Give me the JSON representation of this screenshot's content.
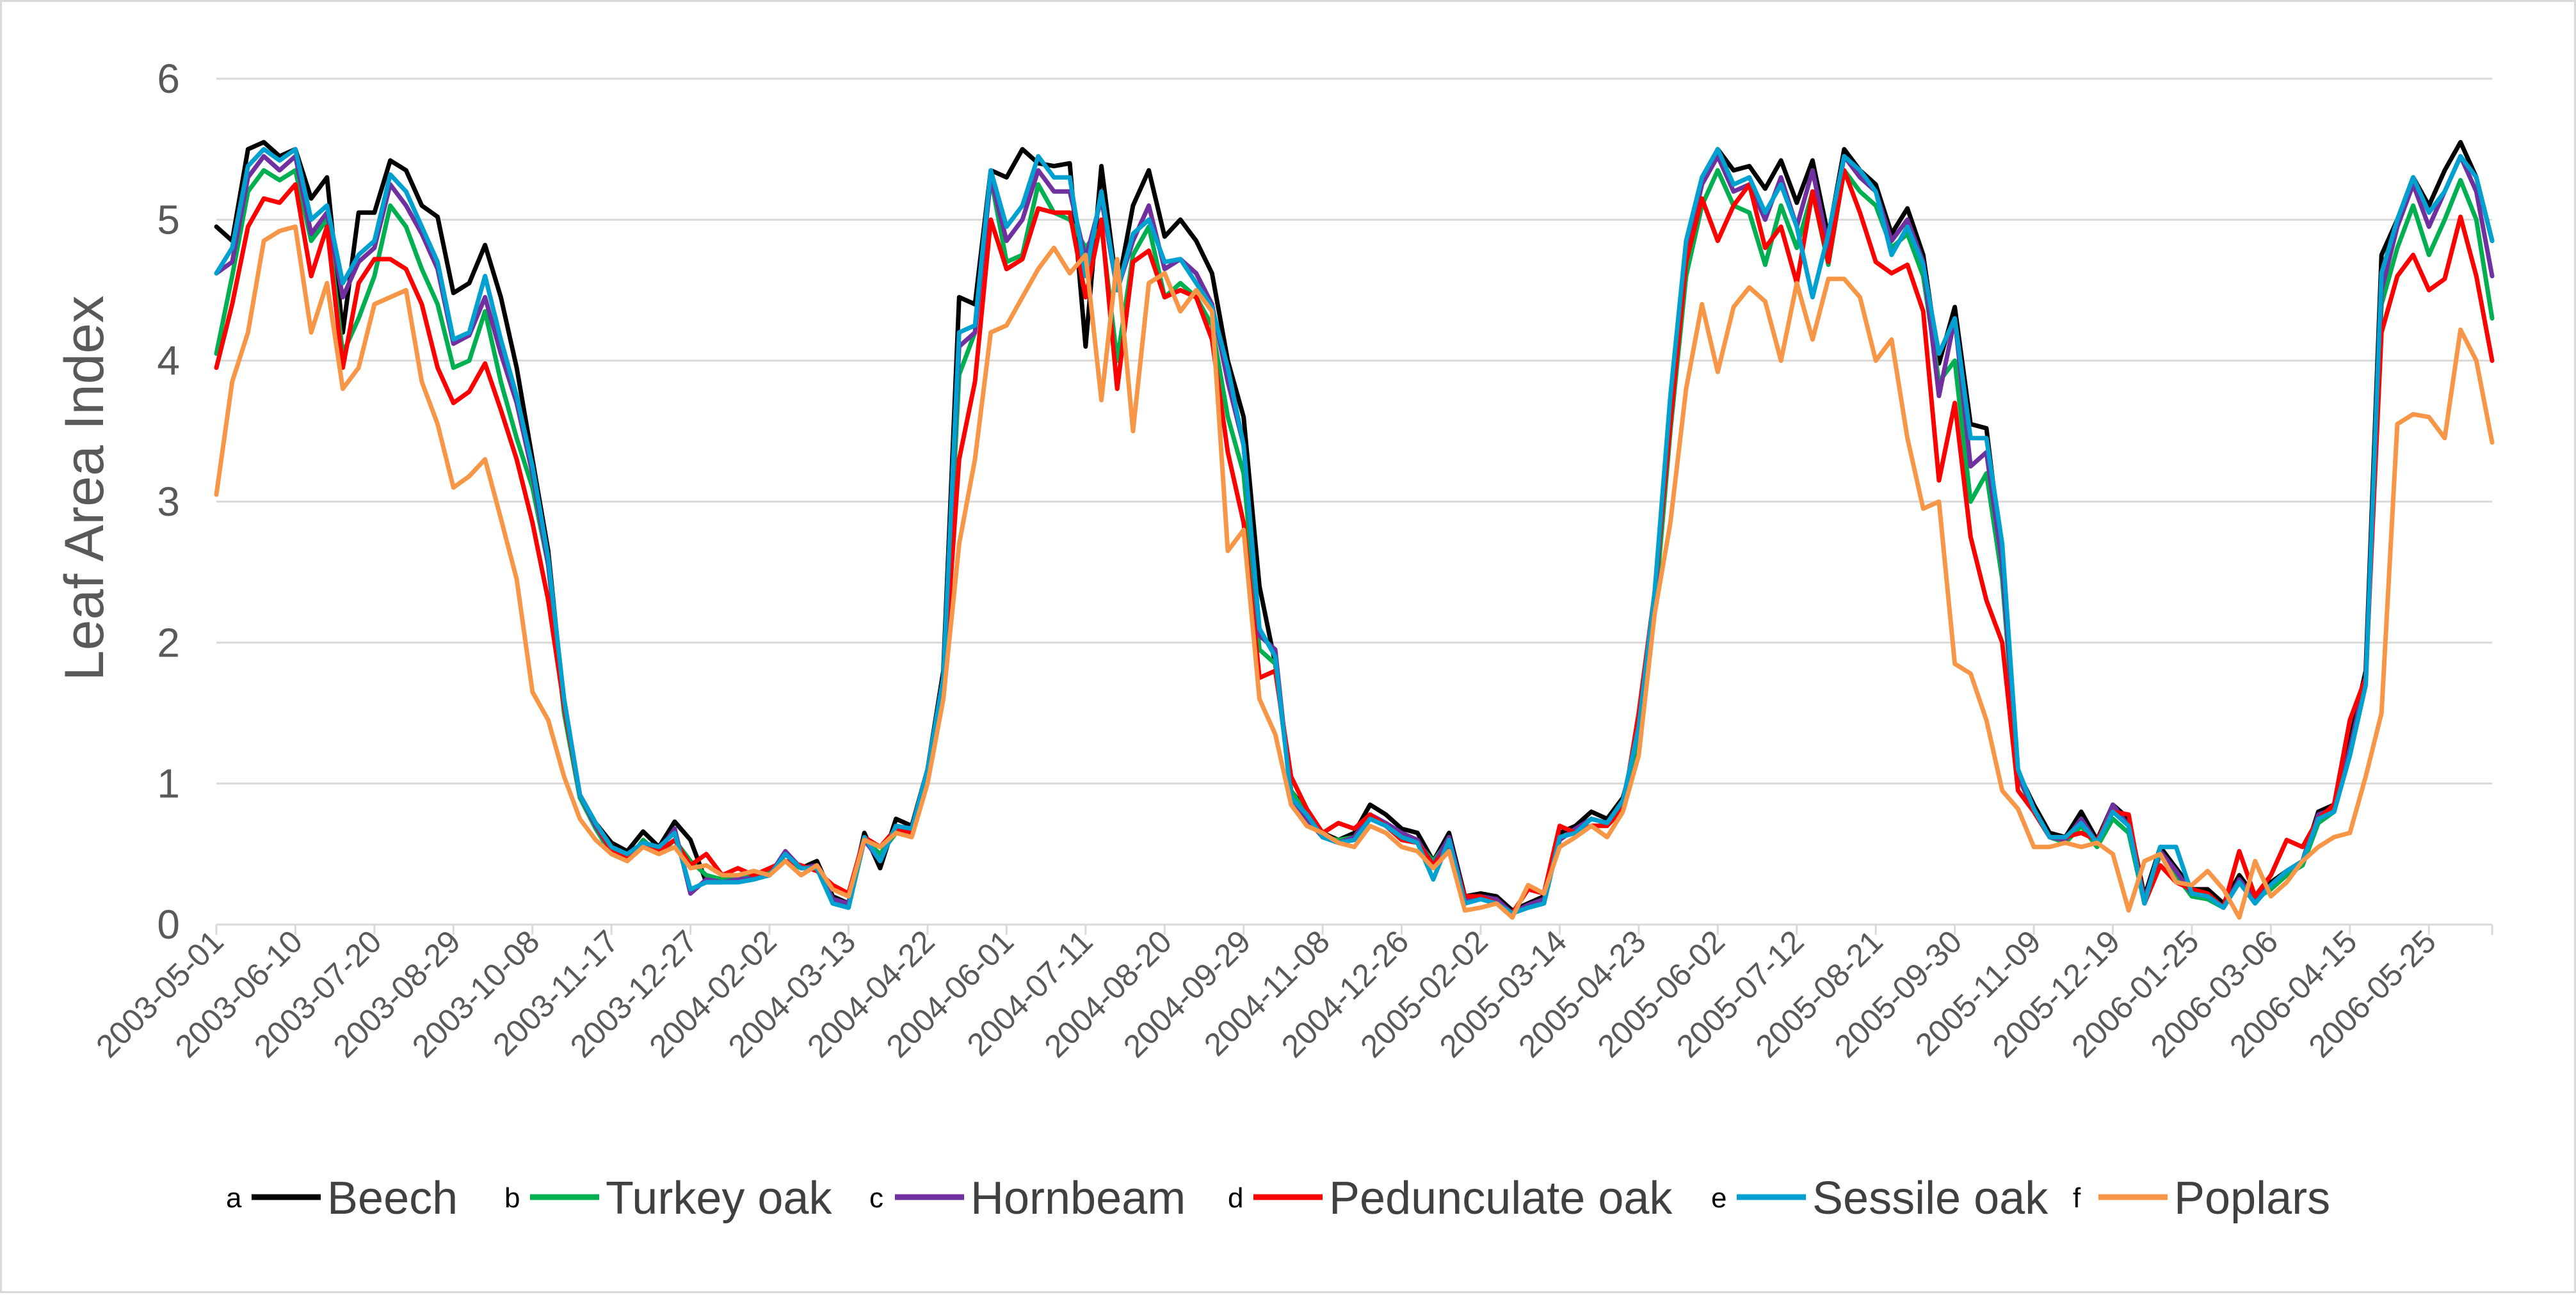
{
  "chart_data": {
    "type": "line",
    "title": "",
    "xlabel": "",
    "ylabel": "Leaf Area Index",
    "ylim": [
      0,
      6
    ],
    "yticks": [
      "0",
      "1",
      "2",
      "3",
      "4",
      "5",
      "6"
    ],
    "grid": "horizontal",
    "legend_position": "bottom",
    "x_tick_labels": [
      "2003-05-01",
      "2003-06-10",
      "2003-07-20",
      "2003-08-29",
      "2003-10-08",
      "2003-11-17",
      "2003-12-27",
      "2004-02-02",
      "2004-03-13",
      "2004-04-22",
      "2004-06-01",
      "2004-07-11",
      "2004-08-20",
      "2004-09-29",
      "2004-11-08",
      "2004-12-26",
      "2005-02-02",
      "2005-03-14",
      "2005-04-23",
      "2005-06-02",
      "2005-07-12",
      "2005-08-21",
      "2005-09-30",
      "2005-11-09",
      "2005-12-19",
      "2006-01-25",
      "2006-03-06",
      "2006-04-15",
      "2006-05-25"
    ],
    "tick_every_n_points": 5,
    "series": [
      {
        "letter": "a",
        "name": "Beech",
        "color": "#000000",
        "values": [
          4.95,
          4.85,
          5.5,
          5.55,
          5.45,
          5.5,
          5.15,
          5.3,
          4.2,
          5.05,
          5.05,
          5.42,
          5.35,
          5.1,
          5.02,
          4.48,
          4.55,
          4.82,
          4.45,
          3.95,
          3.3,
          2.65,
          1.55,
          0.92,
          0.72,
          0.58,
          0.52,
          0.66,
          0.55,
          0.73,
          0.6,
          0.3,
          0.3,
          0.33,
          0.35,
          0.35,
          0.5,
          0.4,
          0.45,
          0.2,
          0.15,
          0.65,
          0.4,
          0.75,
          0.7,
          1.1,
          1.8,
          4.45,
          4.4,
          5.35,
          5.3,
          5.5,
          5.4,
          5.38,
          5.4,
          4.1,
          5.38,
          4.5,
          5.1,
          5.35,
          4.88,
          5.0,
          4.85,
          4.62,
          4.0,
          3.6,
          2.4,
          1.85,
          0.95,
          0.8,
          0.65,
          0.6,
          0.65,
          0.85,
          0.78,
          0.68,
          0.65,
          0.45,
          0.65,
          0.2,
          0.22,
          0.2,
          0.1,
          0.15,
          0.2,
          0.65,
          0.7,
          0.8,
          0.75,
          0.9,
          1.3,
          2.3,
          3.7,
          4.8,
          5.25,
          5.5,
          5.35,
          5.38,
          5.22,
          5.42,
          5.12,
          5.42,
          4.88,
          5.5,
          5.35,
          5.25,
          4.9,
          5.08,
          4.75,
          3.98,
          4.38,
          3.55,
          3.52,
          2.6,
          1.08,
          0.85,
          0.65,
          0.62,
          0.8,
          0.6,
          0.85,
          0.75,
          0.2,
          0.55,
          0.4,
          0.25,
          0.25,
          0.15,
          0.35,
          0.2,
          0.3,
          0.38,
          0.45,
          0.8,
          0.85,
          1.3,
          1.8,
          4.75,
          5.0,
          5.3,
          5.1,
          5.35,
          5.55,
          5.3,
          4.85
        ]
      },
      {
        "letter": "b",
        "name": "Turkey oak",
        "color": "#00B050",
        "values": [
          4.05,
          4.6,
          5.2,
          5.35,
          5.28,
          5.35,
          4.85,
          5.0,
          4.05,
          4.3,
          4.6,
          5.1,
          4.95,
          4.65,
          4.4,
          3.95,
          4.0,
          4.35,
          3.85,
          3.45,
          3.1,
          2.55,
          1.5,
          0.9,
          0.68,
          0.5,
          0.45,
          0.6,
          0.5,
          0.6,
          0.45,
          0.35,
          0.32,
          0.33,
          0.35,
          0.38,
          0.45,
          0.4,
          0.4,
          0.15,
          0.12,
          0.6,
          0.5,
          0.65,
          0.65,
          1.05,
          1.7,
          3.9,
          4.2,
          5.3,
          4.7,
          4.75,
          5.25,
          5.05,
          5.0,
          4.8,
          4.95,
          4.0,
          4.75,
          4.95,
          4.45,
          4.55,
          4.45,
          4.25,
          3.6,
          3.2,
          1.95,
          1.85,
          0.95,
          0.78,
          0.62,
          0.6,
          0.62,
          0.78,
          0.7,
          0.62,
          0.58,
          0.45,
          0.6,
          0.15,
          0.18,
          0.15,
          0.08,
          0.12,
          0.15,
          0.62,
          0.65,
          0.7,
          0.7,
          0.85,
          1.35,
          2.2,
          3.5,
          4.6,
          5.1,
          5.35,
          5.1,
          5.05,
          4.68,
          5.1,
          4.8,
          5.2,
          4.68,
          5.35,
          5.2,
          5.1,
          4.8,
          4.9,
          4.6,
          3.85,
          4.0,
          3.0,
          3.2,
          2.45,
          1.05,
          0.8,
          0.62,
          0.58,
          0.7,
          0.55,
          0.75,
          0.65,
          0.15,
          0.5,
          0.35,
          0.2,
          0.18,
          0.12,
          0.3,
          0.18,
          0.25,
          0.35,
          0.42,
          0.72,
          0.8,
          1.2,
          1.7,
          4.4,
          4.8,
          5.1,
          4.75,
          5.0,
          5.28,
          5.0,
          4.3
        ]
      },
      {
        "letter": "c",
        "name": "Hornbeam",
        "color": "#7030A0",
        "values": [
          4.62,
          4.7,
          5.3,
          5.45,
          5.35,
          5.45,
          4.9,
          5.05,
          4.45,
          4.7,
          4.8,
          5.25,
          5.1,
          4.9,
          4.65,
          4.12,
          4.18,
          4.45,
          4.05,
          3.7,
          3.2,
          2.55,
          1.6,
          0.92,
          0.7,
          0.52,
          0.5,
          0.58,
          0.52,
          0.68,
          0.22,
          0.32,
          0.3,
          0.32,
          0.33,
          0.35,
          0.52,
          0.4,
          0.42,
          0.18,
          0.15,
          0.6,
          0.45,
          0.7,
          0.68,
          1.1,
          1.75,
          4.1,
          4.2,
          5.3,
          4.85,
          5.0,
          5.35,
          5.2,
          5.2,
          4.72,
          5.15,
          4.5,
          4.85,
          5.1,
          4.65,
          4.72,
          4.62,
          4.4,
          3.85,
          3.4,
          2.05,
          1.95,
          0.9,
          0.75,
          0.62,
          0.58,
          0.62,
          0.78,
          0.72,
          0.65,
          0.6,
          0.42,
          0.62,
          0.18,
          0.2,
          0.18,
          0.08,
          0.14,
          0.18,
          0.6,
          0.68,
          0.75,
          0.72,
          0.88,
          1.4,
          2.3,
          3.65,
          4.75,
          5.25,
          5.45,
          5.2,
          5.25,
          5.0,
          5.3,
          4.95,
          5.35,
          4.8,
          5.45,
          5.3,
          5.2,
          4.85,
          5.0,
          4.7,
          3.75,
          4.3,
          3.25,
          3.35,
          2.55,
          1.05,
          0.82,
          0.62,
          0.6,
          0.75,
          0.58,
          0.85,
          0.7,
          0.18,
          0.52,
          0.38,
          0.22,
          0.22,
          0.12,
          0.32,
          0.18,
          0.28,
          0.38,
          0.45,
          0.78,
          0.82,
          1.25,
          1.75,
          4.5,
          4.95,
          5.25,
          4.95,
          5.2,
          5.45,
          5.2,
          4.6
        ]
      },
      {
        "letter": "d",
        "name": "Pedunculate oak",
        "color": "#FF0000",
        "values": [
          3.95,
          4.4,
          4.95,
          5.15,
          5.12,
          5.25,
          4.6,
          4.95,
          3.95,
          4.55,
          4.72,
          4.72,
          4.65,
          4.4,
          3.95,
          3.7,
          3.78,
          3.98,
          3.65,
          3.3,
          2.85,
          2.3,
          1.55,
          0.92,
          0.72,
          0.52,
          0.48,
          0.55,
          0.52,
          0.6,
          0.42,
          0.5,
          0.35,
          0.4,
          0.35,
          0.4,
          0.45,
          0.42,
          0.38,
          0.28,
          0.22,
          0.62,
          0.55,
          0.68,
          0.65,
          1.05,
          1.7,
          3.3,
          3.85,
          5.0,
          4.65,
          4.72,
          5.08,
          5.05,
          5.05,
          4.45,
          5.0,
          3.8,
          4.7,
          4.78,
          4.45,
          4.5,
          4.45,
          4.15,
          3.35,
          2.85,
          1.75,
          1.8,
          1.05,
          0.82,
          0.65,
          0.72,
          0.68,
          0.78,
          0.7,
          0.6,
          0.58,
          0.42,
          0.55,
          0.2,
          0.2,
          0.15,
          0.08,
          0.25,
          0.22,
          0.7,
          0.65,
          0.7,
          0.7,
          0.82,
          1.5,
          2.35,
          3.55,
          4.7,
          5.15,
          4.85,
          5.1,
          5.25,
          4.8,
          4.95,
          4.55,
          5.2,
          4.7,
          5.35,
          5.05,
          4.7,
          4.62,
          4.68,
          4.35,
          3.15,
          3.7,
          2.75,
          2.3,
          2.0,
          0.95,
          0.8,
          0.62,
          0.62,
          0.65,
          0.6,
          0.8,
          0.78,
          0.15,
          0.42,
          0.3,
          0.25,
          0.22,
          0.12,
          0.52,
          0.2,
          0.35,
          0.6,
          0.55,
          0.75,
          0.85,
          1.45,
          1.75,
          4.2,
          4.6,
          4.75,
          4.5,
          4.58,
          5.02,
          4.6,
          4.0
        ]
      },
      {
        "letter": "e",
        "name": "Sessile oak",
        "color": "#00A0D0",
        "values": [
          4.62,
          4.8,
          5.38,
          5.5,
          5.42,
          5.5,
          5.0,
          5.1,
          4.55,
          4.75,
          4.85,
          5.32,
          5.2,
          4.95,
          4.7,
          4.15,
          4.2,
          4.6,
          4.15,
          3.75,
          3.25,
          2.6,
          1.6,
          0.92,
          0.72,
          0.55,
          0.5,
          0.58,
          0.55,
          0.65,
          0.25,
          0.3,
          0.3,
          0.3,
          0.32,
          0.35,
          0.5,
          0.4,
          0.4,
          0.15,
          0.12,
          0.62,
          0.45,
          0.7,
          0.68,
          1.1,
          1.75,
          4.2,
          4.25,
          5.35,
          4.95,
          5.1,
          5.45,
          5.3,
          5.3,
          4.6,
          5.2,
          4.5,
          4.9,
          5.0,
          4.7,
          4.72,
          4.55,
          4.38,
          3.95,
          3.4,
          2.1,
          1.9,
          0.9,
          0.78,
          0.62,
          0.58,
          0.6,
          0.75,
          0.7,
          0.62,
          0.58,
          0.32,
          0.6,
          0.15,
          0.18,
          0.15,
          0.08,
          0.12,
          0.15,
          0.62,
          0.65,
          0.75,
          0.72,
          0.88,
          1.4,
          2.35,
          3.75,
          4.85,
          5.3,
          5.5,
          5.25,
          5.3,
          5.05,
          5.25,
          4.95,
          4.45,
          4.9,
          5.45,
          5.35,
          5.2,
          4.75,
          4.95,
          4.68,
          4.05,
          4.3,
          3.45,
          3.45,
          2.7,
          1.1,
          0.82,
          0.62,
          0.62,
          0.72,
          0.58,
          0.8,
          0.7,
          0.15,
          0.55,
          0.55,
          0.22,
          0.2,
          0.12,
          0.3,
          0.15,
          0.28,
          0.38,
          0.45,
          0.75,
          0.8,
          1.2,
          1.7,
          4.62,
          5.0,
          5.3,
          5.05,
          5.2,
          5.45,
          5.3,
          4.85
        ]
      },
      {
        "letter": "f",
        "name": "Poplars",
        "color": "#F79646",
        "values": [
          3.05,
          3.85,
          4.2,
          4.85,
          4.92,
          4.95,
          4.2,
          4.55,
          3.8,
          3.95,
          4.4,
          4.45,
          4.5,
          3.85,
          3.55,
          3.1,
          3.18,
          3.3,
          2.88,
          2.45,
          1.65,
          1.45,
          1.05,
          0.75,
          0.6,
          0.5,
          0.45,
          0.55,
          0.5,
          0.55,
          0.4,
          0.42,
          0.35,
          0.35,
          0.38,
          0.35,
          0.45,
          0.35,
          0.42,
          0.25,
          0.2,
          0.6,
          0.55,
          0.65,
          0.62,
          1.0,
          1.6,
          2.7,
          3.3,
          4.2,
          4.25,
          4.45,
          4.65,
          4.8,
          4.62,
          4.75,
          3.72,
          4.72,
          3.5,
          4.55,
          4.62,
          4.35,
          4.5,
          4.35,
          2.65,
          2.8,
          1.6,
          1.35,
          0.85,
          0.7,
          0.65,
          0.58,
          0.55,
          0.7,
          0.65,
          0.55,
          0.52,
          0.4,
          0.52,
          0.1,
          0.12,
          0.15,
          0.05,
          0.28,
          0.22,
          0.55,
          0.62,
          0.7,
          0.62,
          0.8,
          1.2,
          2.2,
          2.85,
          3.8,
          4.4,
          3.92,
          4.38,
          4.52,
          4.42,
          4.0,
          4.55,
          4.15,
          4.58,
          4.58,
          4.45,
          4.0,
          4.15,
          3.45,
          2.95,
          3.0,
          1.85,
          1.78,
          1.45,
          0.95,
          0.82,
          0.55,
          0.55,
          0.58,
          0.55,
          0.58,
          0.5,
          0.1,
          0.45,
          0.5,
          0.3,
          0.28,
          0.38,
          0.25,
          0.05,
          0.45,
          0.2,
          0.3,
          0.45,
          0.55,
          0.62,
          0.65,
          1.05,
          1.5,
          3.55,
          3.62,
          3.6,
          3.45,
          4.22,
          4.0,
          3.42
        ]
      }
    ]
  }
}
